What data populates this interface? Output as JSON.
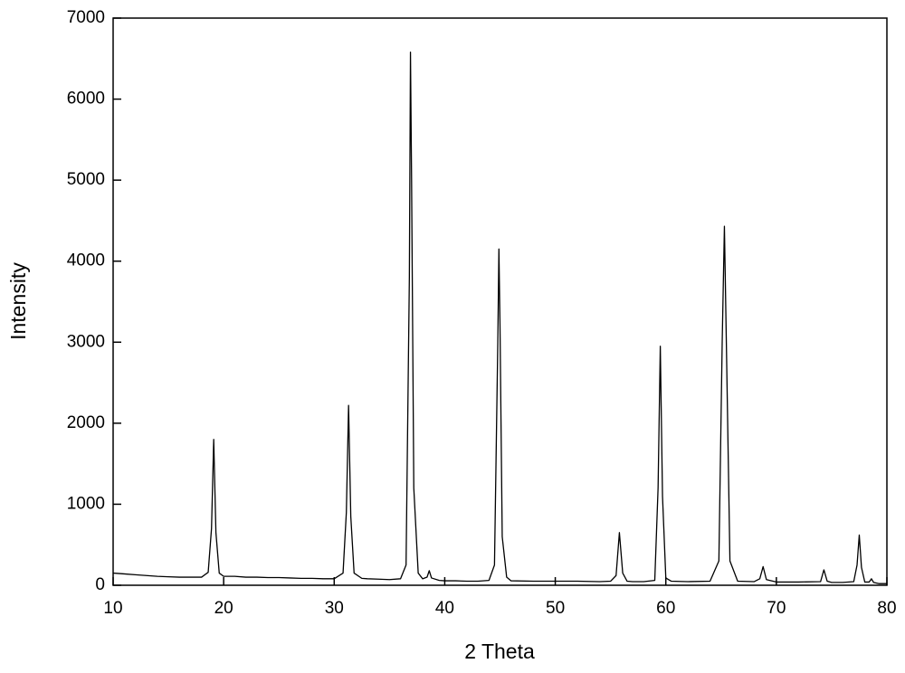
{
  "chart_data": {
    "type": "line",
    "x_label": "2 Theta",
    "y_label": "Intensity",
    "xlim": [
      10,
      80
    ],
    "xticks": [
      10,
      20,
      30,
      40,
      50,
      60,
      70,
      80
    ],
    "ylim": [
      0,
      7000
    ],
    "yticks": [
      0,
      1000,
      2000,
      3000,
      4000,
      5000,
      6000,
      7000
    ],
    "x": [
      10,
      11,
      12,
      13,
      14,
      15,
      16,
      17,
      18,
      18.6,
      18.9,
      19.1,
      19.3,
      19.6,
      20,
      21,
      22,
      23,
      24,
      25,
      26,
      27,
      28,
      29,
      30,
      30.8,
      31.1,
      31.3,
      31.5,
      31.8,
      32.5,
      33,
      34,
      35,
      36,
      36.5,
      36.8,
      36.9,
      37.0,
      37.2,
      37.6,
      38,
      38.4,
      38.6,
      38.8,
      39.5,
      40,
      41,
      42,
      43,
      44,
      44.5,
      44.8,
      44.9,
      45.0,
      45.2,
      45.6,
      46,
      48,
      50,
      52,
      54,
      55,
      55.5,
      55.8,
      56.1,
      56.5,
      57,
      58,
      59,
      59.3,
      59.5,
      59.7,
      60,
      60.5,
      62,
      64,
      64.8,
      65.1,
      65.3,
      65.5,
      65.8,
      66.5,
      68,
      68.5,
      68.8,
      69.1,
      70,
      72,
      74,
      74.3,
      74.6,
      75,
      76,
      77,
      77.3,
      77.5,
      77.7,
      78,
      78.4,
      78.6,
      78.8,
      79.3,
      80
    ],
    "series": [
      {
        "color": "#000000",
        "values": [
          150,
          140,
          130,
          120,
          110,
          105,
          100,
          100,
          100,
          160,
          700,
          1800,
          650,
          150,
          110,
          110,
          100,
          100,
          95,
          95,
          90,
          85,
          85,
          80,
          80,
          150,
          900,
          2220,
          850,
          150,
          85,
          80,
          75,
          70,
          80,
          250,
          3800,
          6580,
          5000,
          1200,
          150,
          80,
          100,
          180,
          90,
          60,
          55,
          55,
          50,
          50,
          60,
          250,
          3000,
          4150,
          3200,
          600,
          100,
          55,
          50,
          50,
          50,
          45,
          50,
          120,
          650,
          150,
          50,
          45,
          45,
          60,
          1200,
          2950,
          1100,
          90,
          50,
          45,
          50,
          300,
          3000,
          4430,
          2800,
          300,
          50,
          45,
          80,
          230,
          70,
          40,
          40,
          45,
          190,
          50,
          35,
          35,
          45,
          250,
          620,
          220,
          40,
          40,
          80,
          35,
          20,
          20
        ]
      }
    ]
  }
}
